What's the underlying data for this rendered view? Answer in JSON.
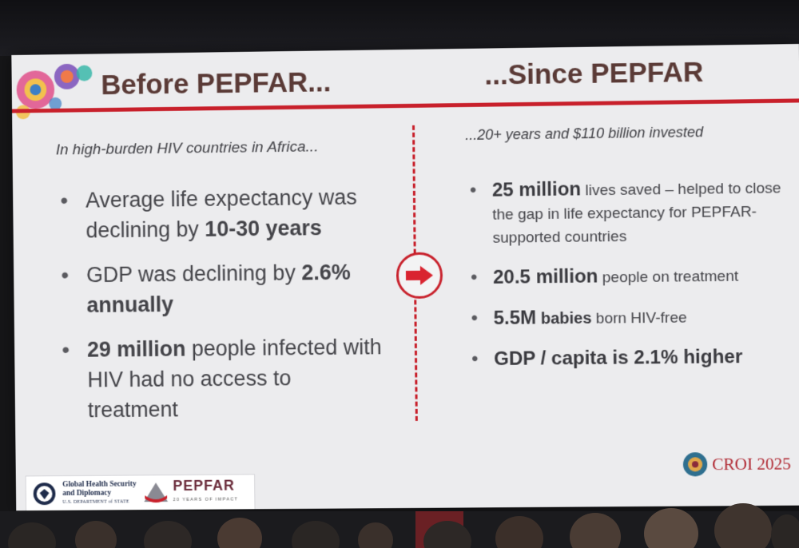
{
  "slide": {
    "title_left": "Before PEPFAR...",
    "title_right": "...Since PEPFAR",
    "subtitle_left": "In high-burden HIV countries in Africa...",
    "subtitle_right": "...20+ years and $110 billion invested",
    "left_points": [
      {
        "pre": "Average life expectancy was declining by ",
        "bold": "10-30 years",
        "post": ""
      },
      {
        "pre": "GDP was declining by ",
        "bold": "2.6% annually",
        "post": ""
      },
      {
        "pre": "",
        "bold": "29 million",
        "post": " people infected with HIV had no access to treatment"
      }
    ],
    "right_points": [
      {
        "bold": "25 million",
        "rest": " lives saved – helped to close the gap in life expectancy for PEPFAR-supported countries"
      },
      {
        "bold": "20.5 million",
        "rest": " people on treatment"
      },
      {
        "bold": "5.5M",
        "bold_small": " babies",
        "rest": " born HIV-free"
      },
      {
        "bold": "GDP / capita is 2.1% higher",
        "rest": ""
      }
    ],
    "footer": {
      "ghsd_line1": "Global Health Security",
      "ghsd_line2": "and Diplomacy",
      "ghsd_line3": "U.S. DEPARTMENT of STATE",
      "pepfar": "PEPFAR",
      "pepfar_sub": "20 YEARS OF IMPACT",
      "conference": "CROI 2025"
    },
    "colors": {
      "accent": "#c8202b",
      "title": "#5a3a36",
      "background": "#ececee"
    }
  }
}
